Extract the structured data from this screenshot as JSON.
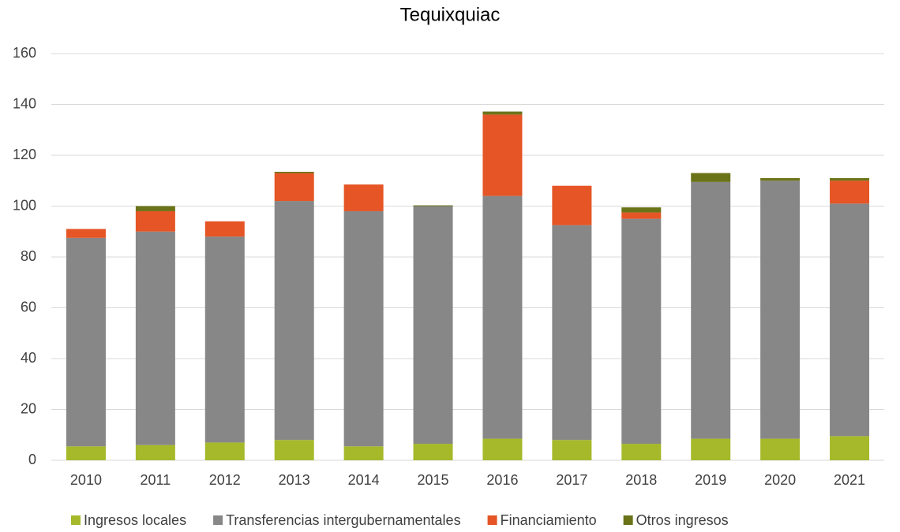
{
  "chart_data": {
    "type": "stacked_bar",
    "title": "Tequixquiac",
    "categories": [
      "2010",
      "2011",
      "2012",
      "2013",
      "2014",
      "2015",
      "2016",
      "2017",
      "2018",
      "2019",
      "2020",
      "2021"
    ],
    "series": [
      {
        "name": "Ingresos locales",
        "color": "#a5b92a",
        "values": [
          5.5,
          6,
          7,
          8,
          5.5,
          6.5,
          8.5,
          8,
          6.5,
          8.5,
          8.5,
          9.5
        ]
      },
      {
        "name": "Transferencias intergubernamentales",
        "color": "#878787",
        "values": [
          82,
          84,
          81,
          94,
          92.5,
          93.5,
          95.5,
          84.5,
          88.5,
          101,
          101.5,
          91.5
        ]
      },
      {
        "name": "Financiamiento",
        "color": "#e55525",
        "values": [
          3.5,
          8,
          6,
          11,
          10.5,
          0,
          32,
          15.5,
          2.5,
          0,
          0,
          9
        ]
      },
      {
        "name": "Otros ingresos",
        "color": "#6b7318",
        "values": [
          0,
          2,
          0,
          0.5,
          0,
          0.3,
          1.2,
          0,
          2,
          3.5,
          1,
          1
        ]
      }
    ],
    "ylim": [
      0,
      160
    ],
    "yticks": [
      0,
      20,
      40,
      60,
      80,
      100,
      120,
      140,
      160
    ],
    "grid": true,
    "legend": "bottom"
  }
}
